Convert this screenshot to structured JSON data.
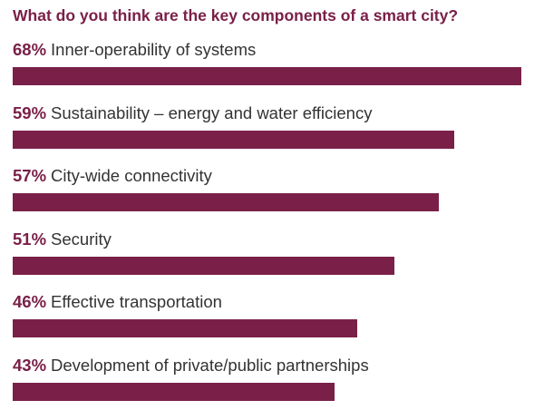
{
  "title": "What do you think are the key components of a smart city?",
  "colors": {
    "accent": "#7a2048",
    "text": "#333333"
  },
  "chart_data": {
    "type": "bar",
    "orientation": "horizontal",
    "title": "What do you think are the key components of a smart city?",
    "categories": [
      "Inner-operability of systems",
      "Sustainability – energy and water efficiency",
      "City-wide connectivity",
      "Security",
      "Effective transportation",
      "Development of private/public partnerships"
    ],
    "values": [
      68,
      59,
      57,
      51,
      46,
      43
    ],
    "value_labels": [
      "68%",
      "59%",
      "57%",
      "51%",
      "46%",
      "43%"
    ],
    "xlim": [
      0,
      68
    ],
    "grid": false,
    "legend": "none"
  }
}
